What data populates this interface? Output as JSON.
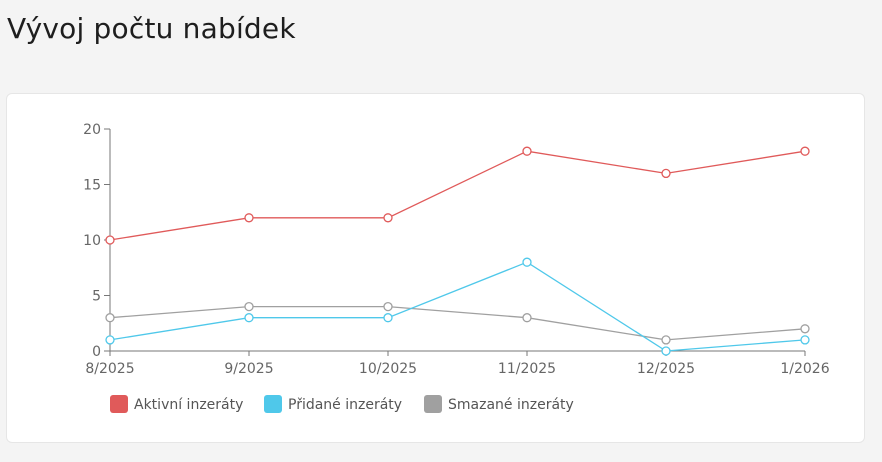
{
  "page": {
    "title": "Vývoj počtu nabídek"
  },
  "chart_data": {
    "type": "line",
    "title": "",
    "xlabel": "",
    "ylabel": "",
    "categories": [
      "8/2025",
      "9/2025",
      "10/2025",
      "11/2025",
      "12/2025",
      "1/2026"
    ],
    "ylim": [
      0,
      20
    ],
    "yticks": [
      0,
      5,
      10,
      15,
      20
    ],
    "grid": false,
    "legend_position": "bottom-left",
    "series": [
      {
        "name": "Aktivní inzeráty",
        "color": "#e05a5a",
        "values": [
          10,
          12,
          12,
          18,
          16,
          18
        ]
      },
      {
        "name": "Přidané inzeráty",
        "color": "#4fc8ea",
        "values": [
          1,
          3,
          3,
          8,
          0,
          1
        ]
      },
      {
        "name": "Smazané inzeráty",
        "color": "#a0a0a0",
        "values": [
          3,
          4,
          4,
          3,
          1,
          2
        ]
      }
    ]
  }
}
